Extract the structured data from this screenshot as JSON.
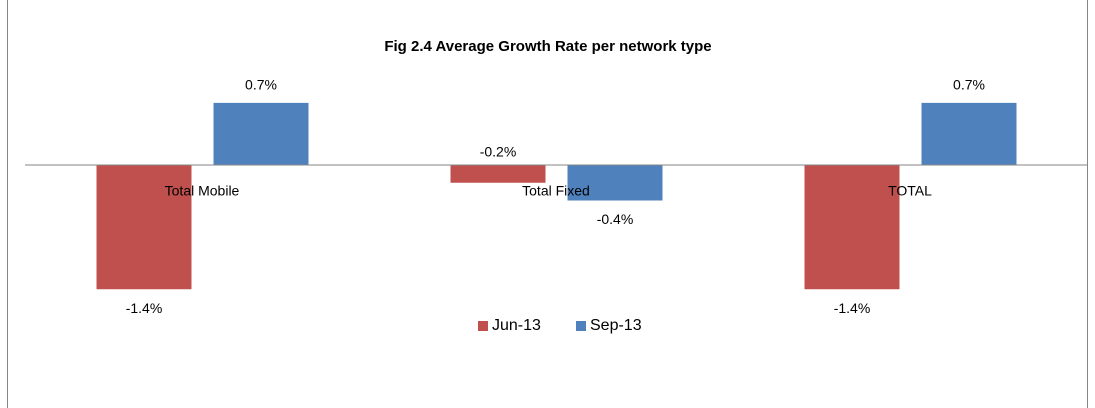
{
  "chart_data": {
    "type": "bar",
    "title": "Fig 2.4 Average Growth Rate per network type",
    "categories": [
      "Total Mobile",
      "Total Fixed",
      "TOTAL"
    ],
    "series": [
      {
        "name": "Jun-13",
        "color": "#c0504d",
        "values": [
          -1.4,
          -0.2,
          -1.4
        ],
        "value_labels": [
          "-1.4%",
          "-0.2%",
          "-1.4%"
        ]
      },
      {
        "name": "Sep-13",
        "color": "#4f81bd",
        "values": [
          0.7,
          -0.4,
          0.7
        ],
        "value_labels": [
          "0.7%",
          "-0.4%",
          "0.7%"
        ]
      }
    ],
    "ylim": [
      -1.6,
      0.8
    ],
    "legend": "bottom"
  }
}
